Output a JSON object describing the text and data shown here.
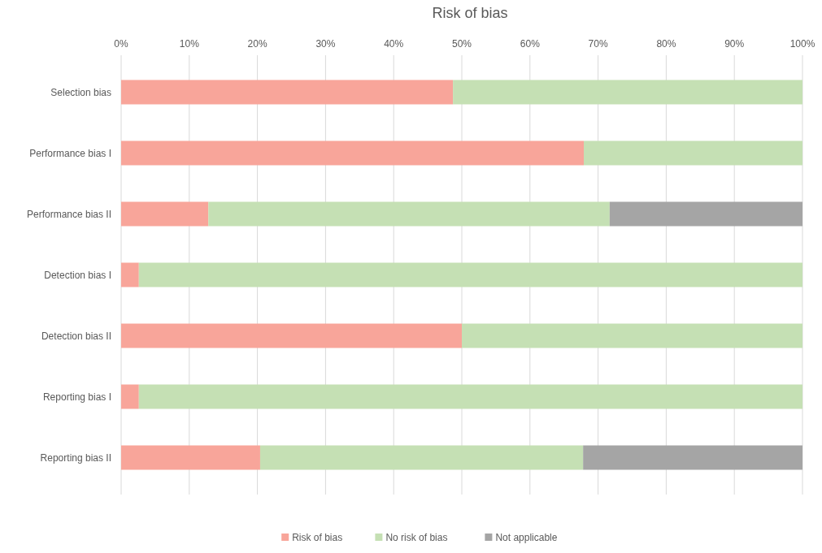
{
  "chart_data": {
    "type": "bar",
    "title": "Risk of bias",
    "orientation": "horizontal",
    "stacked": true,
    "categories": [
      "Selection bias",
      "Performance bias I",
      "Performance bias II",
      "Detection bias I",
      "Detection bias II",
      "Reporting bias I",
      "Reporting bias II"
    ],
    "series": [
      {
        "name": "Risk of bias",
        "color": "#f8a59a",
        "values": [
          48.7,
          67.9,
          12.8,
          2.6,
          50,
          2.6,
          20.4
        ]
      },
      {
        "name": "No risk of bias",
        "color": "#c5e0b4",
        "values": [
          51.3,
          32.1,
          58.9,
          97.4,
          50,
          97.4,
          47.4
        ]
      },
      {
        "name": "Not applicable",
        "color": "#a5a5a5",
        "values": [
          0,
          0,
          28.3,
          0,
          0,
          0,
          32.2
        ]
      }
    ],
    "xlim": [
      0,
      100
    ],
    "xticks": [
      {
        "value": 0,
        "label": "0%"
      },
      {
        "value": 10,
        "label": "10%"
      },
      {
        "value": 20,
        "label": "20%"
      },
      {
        "value": 30,
        "label": "30%"
      },
      {
        "value": 40,
        "label": "40%"
      },
      {
        "value": 50,
        "label": "50%"
      },
      {
        "value": 60,
        "label": "60%"
      },
      {
        "value": 70,
        "label": "70%"
      },
      {
        "value": 80,
        "label": "80%"
      },
      {
        "value": 90,
        "label": "90%"
      },
      {
        "value": 100,
        "label": "100%"
      }
    ],
    "grid": "x",
    "legend": "bottom"
  }
}
